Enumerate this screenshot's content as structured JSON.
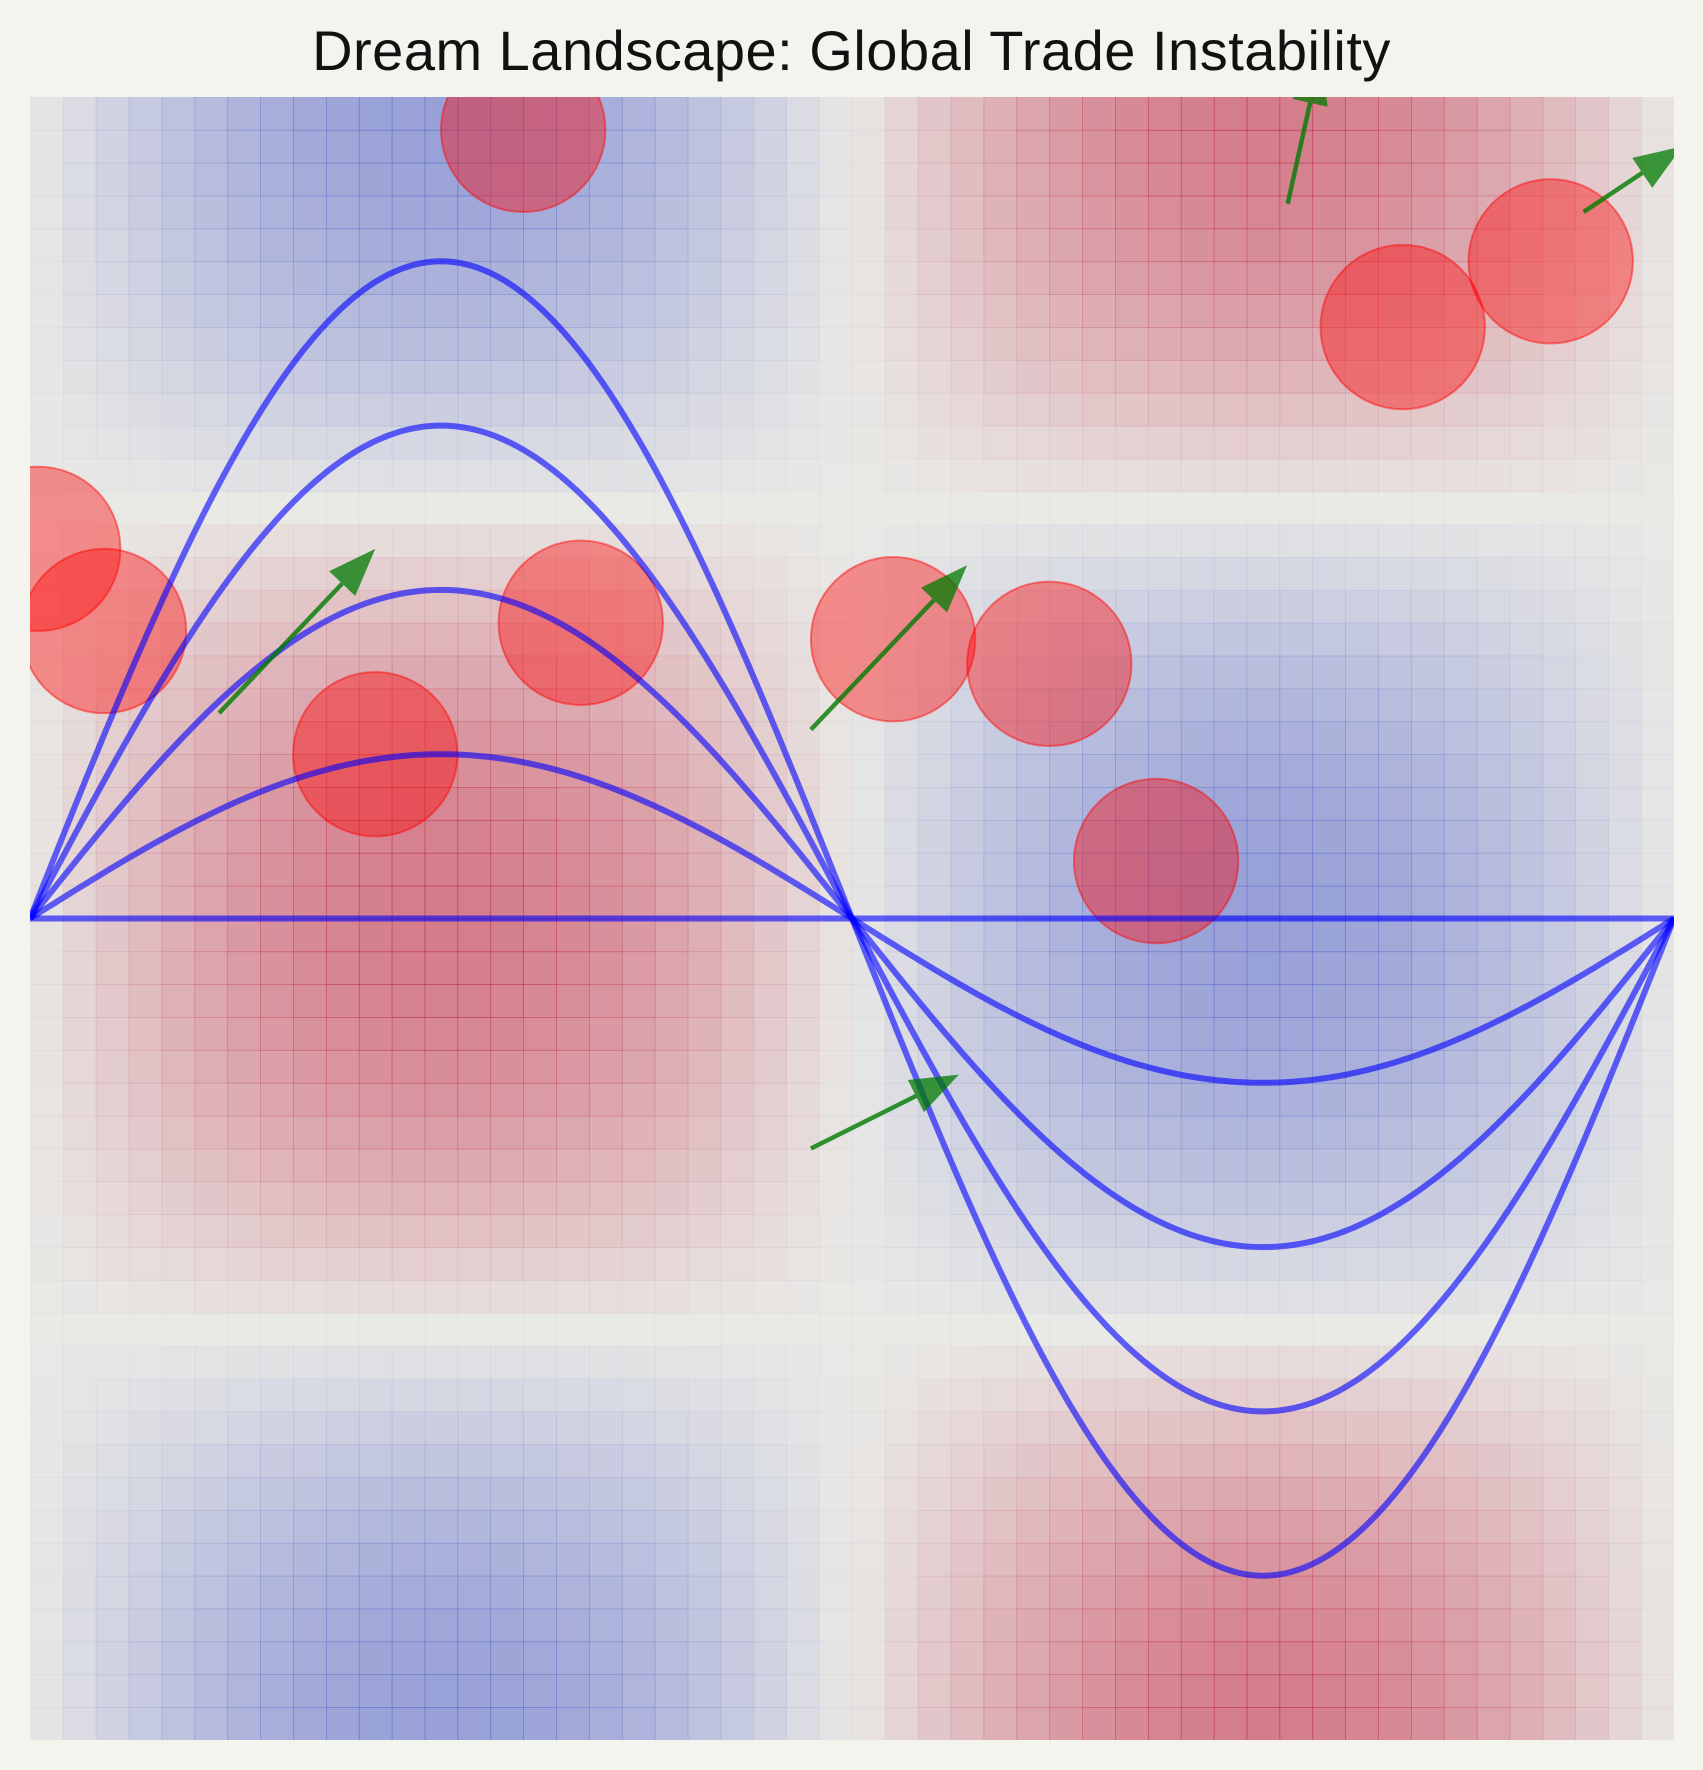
{
  "chart_data": {
    "type": "heatmap",
    "title": "Dream Landscape: Global Trade Instability",
    "xlabel": "",
    "ylabel": "",
    "xlim": [
      0,
      2
    ],
    "ylim": [
      -1,
      1
    ],
    "axes_visible": false,
    "grid": false,
    "colormap": "coolwarm",
    "colormap_colors": {
      "low": "#3b4cc0",
      "mid": "#dddddd",
      "high": "#b40426"
    },
    "heatmap_function": "z = sin(pi*x) * cos(pi*y)",
    "curve_color": "#0000ff",
    "circle_color": "#ff0000",
    "arrow_color": "#007a00",
    "curves": [
      {
        "formula": "y = 0 * sin(pi*x)",
        "amplitude": 0.0
      },
      {
        "formula": "y = 0.2 * sin(pi*x)",
        "amplitude": 0.2
      },
      {
        "formula": "y = 0.4 * sin(pi*x)",
        "amplitude": 0.4
      },
      {
        "formula": "y = 0.6 * sin(pi*x)",
        "amplitude": 0.6
      },
      {
        "formula": "y = 0.8 * sin(pi*x)",
        "amplitude": 0.8
      }
    ],
    "circles": [
      {
        "x": 0.6,
        "y": 0.96,
        "r": 0.1
      },
      {
        "x": 1.67,
        "y": 0.72,
        "r": 0.1
      },
      {
        "x": 1.85,
        "y": 0.8,
        "r": 0.1
      },
      {
        "x": 0.01,
        "y": 0.45,
        "r": 0.1
      },
      {
        "x": 0.09,
        "y": 0.35,
        "r": 0.1
      },
      {
        "x": 0.42,
        "y": 0.2,
        "r": 0.1
      },
      {
        "x": 0.67,
        "y": 0.36,
        "r": 0.1
      },
      {
        "x": 1.05,
        "y": 0.34,
        "r": 0.1
      },
      {
        "x": 1.24,
        "y": 0.31,
        "r": 0.1
      },
      {
        "x": 1.37,
        "y": 0.07,
        "r": 0.1
      }
    ],
    "arrows": [
      {
        "x": 1.53,
        "y": 0.87,
        "dx": 0.04,
        "dy": 0.18
      },
      {
        "x": 1.89,
        "y": 0.86,
        "dx": 0.12,
        "dy": 0.08
      },
      {
        "x": 0.23,
        "y": 0.25,
        "dx": 0.19,
        "dy": 0.2
      },
      {
        "x": 0.95,
        "y": 0.23,
        "dx": 0.19,
        "dy": 0.2
      },
      {
        "x": 0.95,
        "y": -0.28,
        "dx": 0.18,
        "dy": 0.09
      }
    ]
  }
}
